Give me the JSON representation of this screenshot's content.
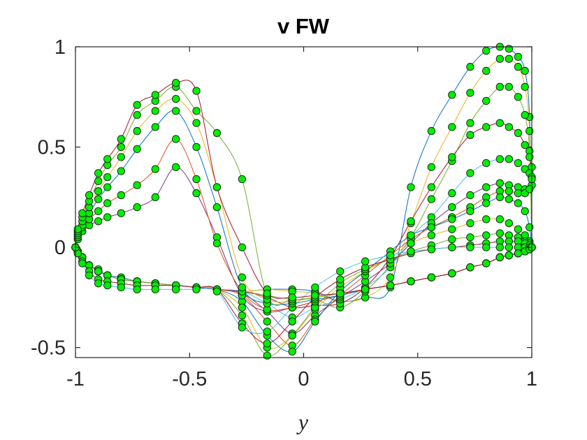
{
  "chart_data": {
    "type": "line",
    "title": "v FW",
    "xlabel": "y",
    "ylabel": "",
    "xlim": [
      -1,
      1
    ],
    "ylim": [
      -0.55,
      1
    ],
    "x_ticks": [
      -1,
      -0.5,
      0,
      0.5,
      1
    ],
    "x_tick_labels": [
      "-1",
      "-0.5",
      "0",
      "0.5",
      "1"
    ],
    "y_ticks": [
      -0.5,
      0,
      0.5,
      1
    ],
    "y_tick_labels": [
      "-0.5",
      "0",
      "0.5",
      "1"
    ],
    "grid": false,
    "legend": "none",
    "marker_color": "#00ee00",
    "marker_edge_color": "#1a1a1a",
    "x": [
      -1,
      -0.99,
      -0.97,
      -0.94,
      -0.9,
      -0.86,
      -0.8,
      -0.73,
      -0.65,
      -0.56,
      -0.47,
      -0.38,
      -0.27,
      -0.16,
      -0.05,
      0.05,
      0.16,
      0.27,
      0.38,
      0.47,
      0.56,
      0.65,
      0.73,
      0.8,
      0.86,
      0.9,
      0.94,
      0.97,
      0.99,
      1
    ],
    "series": [
      {
        "color": "#0072bd",
        "values": [
          0,
          -0.02,
          -0.05,
          -0.09,
          -0.11,
          -0.14,
          -0.15,
          -0.17,
          -0.18,
          -0.19,
          -0.2,
          -0.21,
          -0.22,
          -0.21,
          -0.21,
          -0.22,
          -0.27,
          -0.25,
          -0.2,
          0.3,
          0.58,
          0.76,
          0.9,
          0.98,
          1,
          0.99,
          0.95,
          0.88,
          0.65,
          0
        ]
      },
      {
        "color": "#edb120",
        "values": [
          0,
          -0.02,
          -0.05,
          -0.09,
          -0.12,
          -0.14,
          -0.16,
          -0.17,
          -0.18,
          -0.19,
          -0.2,
          -0.21,
          -0.22,
          -0.21,
          -0.22,
          -0.23,
          -0.27,
          -0.25,
          -0.15,
          0.12,
          0.4,
          0.6,
          0.77,
          0.88,
          0.94,
          0.94,
          0.9,
          0.8,
          0.58,
          0
        ]
      },
      {
        "color": "#77ac30",
        "values": [
          0,
          -0.02,
          -0.05,
          -0.09,
          -0.12,
          -0.14,
          -0.16,
          -0.17,
          -0.18,
          -0.19,
          -0.2,
          -0.21,
          -0.22,
          -0.24,
          -0.26,
          -0.26,
          -0.3,
          -0.22,
          -0.09,
          0.05,
          0.24,
          0.43,
          0.62,
          0.73,
          0.8,
          0.8,
          0.75,
          0.66,
          0.48,
          0
        ]
      },
      {
        "color": "#a2142f",
        "values": [
          0,
          -0.02,
          -0.05,
          -0.09,
          -0.12,
          -0.14,
          -0.16,
          -0.17,
          -0.18,
          -0.19,
          -0.2,
          -0.21,
          -0.22,
          -0.25,
          -0.3,
          -0.29,
          -0.28,
          -0.2,
          -0.05,
          0.13,
          0.3,
          0.45,
          0.56,
          0.6,
          0.62,
          0.6,
          0.57,
          0.51,
          0.45,
          0.4
        ]
      },
      {
        "color": "#4dbeee",
        "values": [
          0,
          -0.02,
          -0.05,
          -0.09,
          -0.12,
          -0.14,
          -0.16,
          -0.17,
          -0.18,
          -0.19,
          -0.2,
          -0.21,
          -0.22,
          -0.28,
          -0.35,
          -0.3,
          -0.26,
          -0.2,
          -0.1,
          0.05,
          0.15,
          0.27,
          0.37,
          0.42,
          0.44,
          0.44,
          0.42,
          0.39,
          0.37,
          0.35
        ]
      },
      {
        "color": "#7e2f8e",
        "values": [
          0,
          -0.02,
          -0.05,
          -0.09,
          -0.12,
          -0.14,
          -0.16,
          -0.17,
          -0.18,
          -0.19,
          -0.2,
          -0.21,
          -0.23,
          -0.32,
          -0.43,
          -0.34,
          -0.25,
          -0.17,
          -0.08,
          0.02,
          0.12,
          0.2,
          0.26,
          0.3,
          0.32,
          0.31,
          0.3,
          0.29,
          0.29,
          0.31
        ]
      },
      {
        "color": "#d95319",
        "values": [
          0,
          -0.02,
          -0.05,
          -0.09,
          -0.12,
          -0.14,
          -0.16,
          -0.17,
          -0.18,
          -0.19,
          -0.2,
          -0.21,
          -0.24,
          -0.37,
          -0.49,
          -0.36,
          -0.24,
          -0.14,
          -0.04,
          0.04,
          0.1,
          0.15,
          0.2,
          0.25,
          0.28,
          0.28,
          0.27,
          0.27,
          0.29,
          0.34
        ]
      },
      {
        "color": "#0072bd",
        "values": [
          0,
          -0.02,
          -0.05,
          -0.09,
          -0.12,
          -0.14,
          -0.16,
          -0.17,
          -0.18,
          -0.19,
          -0.2,
          -0.21,
          -0.27,
          -0.44,
          -0.52,
          -0.37,
          -0.22,
          -0.12,
          -0.02,
          0.06,
          0.1,
          0.14,
          0.18,
          0.22,
          0.25,
          0.24,
          0.22,
          0.18,
          0.1,
          0
        ]
      },
      {
        "color": "#edb120",
        "values": [
          0,
          -0.02,
          -0.05,
          -0.09,
          -0.12,
          -0.14,
          -0.16,
          -0.17,
          -0.18,
          -0.19,
          -0.2,
          -0.21,
          -0.3,
          -0.5,
          -0.44,
          -0.31,
          -0.2,
          -0.12,
          -0.05,
          0.02,
          0.06,
          0.09,
          0.12,
          0.14,
          0.14,
          0.12,
          0.09,
          0.06,
          0.03,
          0
        ]
      },
      {
        "color": "#77ac30",
        "values": [
          0,
          -0.02,
          -0.05,
          -0.09,
          -0.12,
          -0.14,
          -0.16,
          -0.17,
          -0.18,
          -0.19,
          -0.2,
          -0.21,
          -0.34,
          -0.54,
          -0.44,
          -0.3,
          -0.18,
          -0.11,
          -0.06,
          -0.02,
          0.01,
          0.04,
          0.05,
          0.06,
          0.07,
          0.06,
          0.05,
          0.03,
          0.02,
          0
        ]
      },
      {
        "color": "#a2142f",
        "values": [
          0,
          -0.03,
          -0.07,
          -0.12,
          -0.16,
          -0.17,
          -0.18,
          -0.19,
          -0.19,
          -0.19,
          -0.2,
          -0.21,
          -0.38,
          -0.48,
          -0.37,
          -0.25,
          -0.16,
          -0.1,
          -0.06,
          -0.03,
          -0.01,
          0,
          0.01,
          0.02,
          0.03,
          0.03,
          0.03,
          0.02,
          0.01,
          0
        ]
      },
      {
        "color": "#4dbeee",
        "values": [
          0,
          -0.03,
          -0.08,
          -0.14,
          -0.18,
          -0.19,
          -0.2,
          -0.21,
          -0.21,
          -0.21,
          -0.21,
          -0.22,
          -0.4,
          -0.42,
          -0.3,
          -0.2,
          -0.12,
          -0.07,
          -0.04,
          -0.02,
          -0.01,
          0,
          0,
          0,
          0,
          0,
          0,
          0,
          0,
          0
        ]
      },
      {
        "color": "#7e2f8e",
        "values": [
          0,
          0.04,
          0.08,
          0.11,
          0.13,
          0.15,
          0.17,
          0.2,
          0.25,
          0.4,
          0.27,
          0.05,
          -0.24,
          -0.32,
          -0.3,
          -0.27,
          -0.24,
          -0.21,
          -0.19,
          -0.17,
          -0.15,
          -0.13,
          -0.1,
          -0.08,
          -0.05,
          -0.04,
          -0.03,
          -0.02,
          -0.01,
          0
        ]
      },
      {
        "color": "#d95319",
        "values": [
          0,
          0.05,
          0.1,
          0.14,
          0.18,
          0.22,
          0.26,
          0.31,
          0.39,
          0.54,
          0.34,
          0.02,
          -0.22,
          -0.31,
          -0.3,
          -0.27,
          -0.24,
          -0.21,
          -0.19,
          -0.17,
          -0.15,
          -0.13,
          -0.1,
          -0.08,
          -0.05,
          -0.04,
          -0.03,
          -0.02,
          -0.01,
          0
        ]
      },
      {
        "color": "#0072bd",
        "values": [
          0,
          0.06,
          0.11,
          0.17,
          0.24,
          0.3,
          0.38,
          0.49,
          0.6,
          0.68,
          0.5,
          0.2,
          -0.2,
          -0.28,
          -0.28,
          -0.26,
          -0.24,
          -0.21,
          -0.19,
          -0.17,
          -0.15,
          -0.13,
          -0.1,
          -0.08,
          -0.05,
          -0.04,
          -0.03,
          -0.02,
          -0.01,
          0
        ]
      },
      {
        "color": "#edb120",
        "values": [
          0,
          0.07,
          0.13,
          0.2,
          0.28,
          0.35,
          0.45,
          0.58,
          0.68,
          0.74,
          0.62,
          0.3,
          -0.15,
          -0.26,
          -0.27,
          -0.25,
          -0.23,
          -0.21,
          -0.19,
          -0.17,
          -0.15,
          -0.13,
          -0.1,
          -0.08,
          -0.05,
          -0.04,
          -0.03,
          -0.02,
          -0.01,
          0
        ]
      },
      {
        "color": "#77ac30",
        "values": [
          0,
          0.08,
          0.15,
          0.23,
          0.33,
          0.41,
          0.5,
          0.66,
          0.73,
          0.8,
          0.68,
          0.57,
          0.34,
          -0.24,
          -0.26,
          -0.25,
          -0.23,
          -0.21,
          -0.19,
          -0.17,
          -0.15,
          -0.13,
          -0.1,
          -0.08,
          -0.05,
          -0.04,
          -0.03,
          -0.02,
          -0.01,
          0
        ]
      },
      {
        "color": "#a2142f",
        "values": [
          0,
          0.09,
          0.17,
          0.26,
          0.37,
          0.44,
          0.54,
          0.71,
          0.76,
          0.82,
          0.78,
          0.3,
          0.0,
          -0.23,
          -0.25,
          -0.24,
          -0.23,
          -0.21,
          -0.19,
          -0.17,
          -0.15,
          -0.13,
          -0.1,
          -0.08,
          -0.05,
          -0.04,
          -0.03,
          -0.02,
          -0.01,
          0
        ]
      }
    ]
  }
}
